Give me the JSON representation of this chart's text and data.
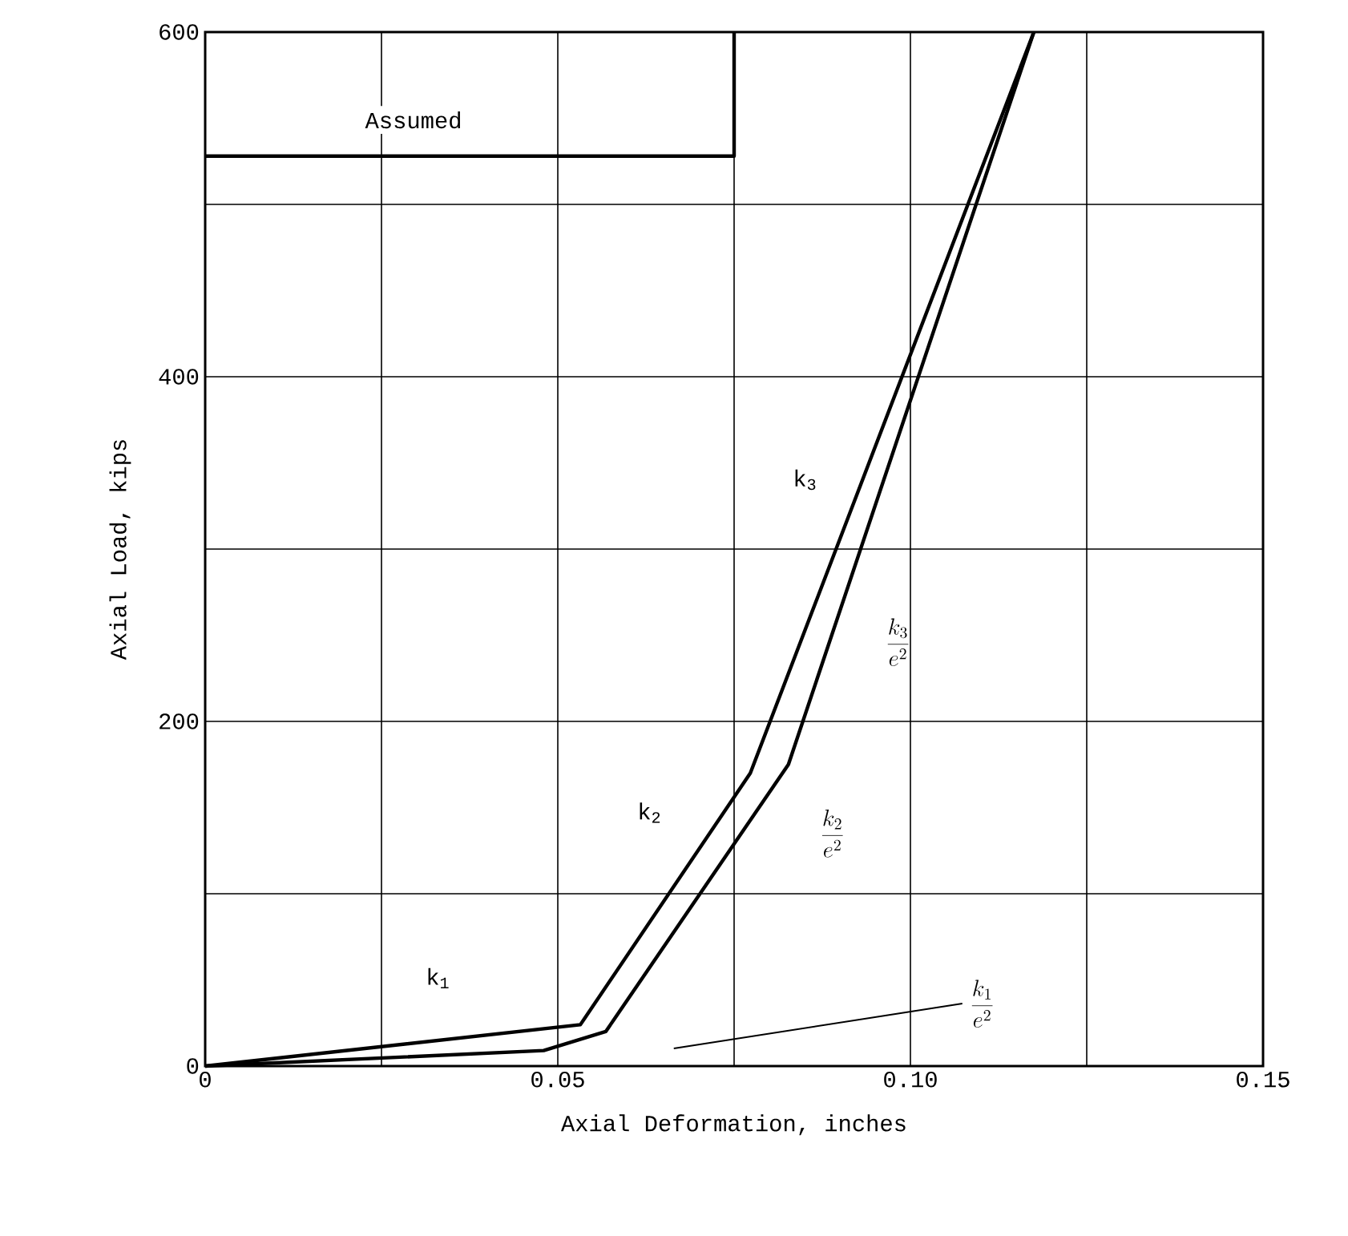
{
  "chart_data": {
    "type": "line",
    "xlabel": "Axial Deformation, inches",
    "ylabel": "Axial Load, kips",
    "xlim": [
      0,
      0.15
    ],
    "ylim": [
      0,
      600
    ],
    "xticks": [
      0,
      {
        "value": 0.025,
        "label": null
      },
      0.05,
      {
        "value": 0.075,
        "label": null
      },
      {
        "value": 0.1,
        "label": "0.10"
      },
      {
        "value": 0.125,
        "label": null
      },
      0.15
    ],
    "yticks": [
      0,
      {
        "value": 100,
        "label": null
      },
      200,
      {
        "value": 300,
        "label": null
      },
      400,
      {
        "value": 500,
        "label": null
      },
      600
    ],
    "grid": true,
    "marker": "none",
    "line_style": "solid",
    "series": [
      {
        "color": "#000000",
        "x": [
          0,
          0.0532,
          0.0773,
          0.1175
        ],
        "values": [
          0,
          24,
          170,
          600
        ]
      },
      {
        "color": "#000000",
        "x": [
          0.1175,
          0.0827,
          0.0568,
          0.048,
          0
        ],
        "values": [
          600,
          175,
          20,
          9,
          0
        ]
      },
      {
        "color": "#000000",
        "x": [
          0,
          0.075,
          0.075
        ],
        "values": [
          528,
          528,
          600
        ]
      }
    ],
    "annotations": [
      "Assumed",
      "k$_{1}$",
      "k$_{2}$",
      "k$_{3}$",
      "\\frac{k_{3}}{e^{2}}",
      "\\frac{k_{2}}{e^{2}}",
      "\\frac{k_{1}}{e^{2}}"
    ]
  }
}
